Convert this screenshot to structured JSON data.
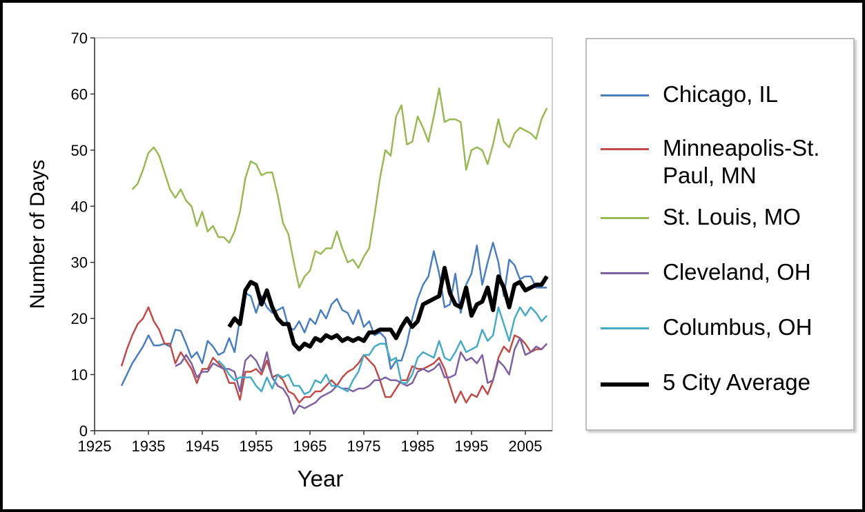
{
  "chart_data": {
    "type": "line",
    "x_label": "Year",
    "y_label": "Number of Days",
    "x": [
      1930,
      1931,
      1932,
      1933,
      1934,
      1935,
      1936,
      1937,
      1938,
      1939,
      1940,
      1941,
      1942,
      1943,
      1944,
      1945,
      1946,
      1947,
      1948,
      1949,
      1950,
      1951,
      1952,
      1953,
      1954,
      1955,
      1956,
      1957,
      1958,
      1959,
      1960,
      1961,
      1962,
      1963,
      1964,
      1965,
      1966,
      1967,
      1968,
      1969,
      1970,
      1971,
      1972,
      1973,
      1974,
      1975,
      1976,
      1977,
      1978,
      1979,
      1980,
      1981,
      1982,
      1983,
      1984,
      1985,
      1986,
      1987,
      1988,
      1989,
      1990,
      1991,
      1992,
      1993,
      1994,
      1995,
      1996,
      1997,
      1998,
      1999,
      2000,
      2001,
      2002,
      2003,
      2004,
      2005,
      2006,
      2007,
      2008,
      2009
    ],
    "series": [
      {
        "name": "Chicago, IL",
        "color": "#4a7ebb",
        "width": 2.5,
        "values": [
          8,
          10,
          12,
          13.5,
          15,
          17,
          15.2,
          15.2,
          15.5,
          15,
          18,
          17.8,
          15.5,
          13,
          14,
          12,
          16,
          15,
          13.5,
          14,
          16.5,
          14,
          20,
          24.5,
          24,
          21,
          24,
          22,
          21,
          21.5,
          22,
          18.5,
          18,
          19.5,
          17.5,
          20,
          19,
          21.5,
          20,
          22.5,
          23.5,
          21.5,
          21,
          19,
          21.5,
          18.5,
          19.5,
          17,
          17.5,
          16.5,
          11,
          12.5,
          12.5,
          15.5,
          20,
          23.5,
          26,
          27.5,
          32,
          28,
          22,
          22.5,
          28,
          21,
          26,
          28,
          33,
          26,
          30,
          33.5,
          30,
          24,
          30.5,
          29.5,
          27,
          27.5,
          27.5,
          25.5,
          25.5,
          25.5
        ]
      },
      {
        "name": "Minneapolis-St. Paul, MN",
        "color": "#be4b48",
        "width": 2.5,
        "values": [
          11.5,
          14.5,
          17,
          19,
          20,
          22,
          19.5,
          18,
          15.5,
          15.5,
          12,
          14,
          12.5,
          11,
          8.5,
          11,
          11,
          13,
          12,
          11,
          8.5,
          8.5,
          5.5,
          10.5,
          10.5,
          11,
          10,
          12.5,
          9.5,
          10,
          9,
          7,
          6.5,
          5,
          6,
          6,
          7,
          7,
          8,
          9,
          8,
          9.5,
          10.5,
          11,
          12,
          13.5,
          12.5,
          11.5,
          9,
          6,
          6,
          7.5,
          9,
          9,
          11.5,
          11,
          11,
          11.5,
          12,
          13,
          11,
          8,
          5,
          7,
          5,
          6.5,
          6,
          8,
          6.5,
          9,
          13,
          15,
          14,
          17,
          16.5,
          15.5,
          14,
          14.5,
          14.5,
          15.5
        ]
      },
      {
        "name": "St. Louis, MO",
        "color": "#98b954",
        "width": 2.5,
        "values": [
          null,
          null,
          43,
          44,
          46.5,
          49.5,
          50.5,
          49,
          46,
          43,
          41.5,
          43,
          41,
          40,
          36.5,
          39,
          35.5,
          36.5,
          34.5,
          34.5,
          33.5,
          35.5,
          39,
          45,
          48,
          47.5,
          45.5,
          46,
          46,
          42,
          37,
          35,
          30,
          25.5,
          27.5,
          28.5,
          32,
          31.5,
          32.5,
          32.5,
          35.5,
          32.5,
          30,
          30.5,
          29,
          31,
          32.5,
          38.5,
          45,
          50,
          49,
          56,
          58,
          51,
          51.5,
          56,
          54,
          51.5,
          56,
          61,
          55,
          55.5,
          55.5,
          55,
          46.5,
          50,
          50.5,
          50,
          47.5,
          51,
          55.5,
          51.5,
          50.5,
          53,
          54,
          53.5,
          53,
          52,
          55.5,
          57.5
        ]
      },
      {
        "name": "Cleveland, OH",
        "color": "#7d60a0",
        "width": 2.5,
        "values": [
          null,
          null,
          null,
          null,
          null,
          null,
          null,
          null,
          null,
          null,
          11.5,
          12,
          13.5,
          12,
          9.5,
          10.5,
          10.5,
          12,
          11.5,
          11,
          11,
          10.5,
          7,
          12.5,
          13.5,
          12.5,
          10.5,
          14,
          9.5,
          8,
          7.5,
          6,
          3,
          4.5,
          4,
          4.5,
          5,
          6,
          6.5,
          7,
          8,
          7.5,
          7.5,
          7,
          7.5,
          7.5,
          8,
          9,
          9,
          9.5,
          9,
          9,
          8.5,
          8,
          8.5,
          10.5,
          11,
          10.5,
          11,
          12,
          9.5,
          9.5,
          10,
          14,
          12.5,
          13,
          12,
          13.5,
          8.5,
          9,
          12.5,
          11.5,
          10,
          14.5,
          16.5,
          13.5,
          14,
          15,
          14.5,
          15.5
        ]
      },
      {
        "name": "Columbus, OH",
        "color": "#46aac5",
        "width": 2.5,
        "values": [
          null,
          null,
          null,
          null,
          null,
          null,
          null,
          null,
          null,
          null,
          null,
          null,
          null,
          null,
          null,
          null,
          null,
          null,
          12.5,
          11.5,
          10,
          9,
          9.5,
          9.5,
          9.5,
          8,
          7,
          9.5,
          7.5,
          10,
          9.5,
          10,
          8,
          8,
          6.5,
          7,
          9,
          8.5,
          10,
          8,
          8,
          7.5,
          7,
          9,
          10.5,
          13.5,
          13.5,
          15,
          15.5,
          15.5,
          12.5,
          13,
          8.5,
          8.5,
          10,
          13,
          14,
          13.5,
          13,
          16,
          13,
          12.5,
          14,
          16,
          14,
          14.5,
          15,
          18,
          16,
          17,
          22,
          19,
          16,
          20,
          22,
          20.5,
          22,
          21,
          19.5,
          20.5
        ]
      },
      {
        "name": "5 City Average",
        "color": "#000000",
        "width": 6,
        "values": [
          null,
          null,
          null,
          null,
          null,
          null,
          null,
          null,
          null,
          null,
          null,
          null,
          null,
          null,
          null,
          null,
          null,
          null,
          null,
          null,
          18.5,
          20,
          19,
          25,
          26.5,
          26,
          22.5,
          25,
          22,
          20,
          19,
          19,
          15.5,
          14.5,
          15.5,
          15,
          16.5,
          16,
          17,
          16.5,
          17,
          16,
          16.5,
          16,
          16.5,
          16,
          17.5,
          17.5,
          18,
          18,
          18,
          16.5,
          18.5,
          20,
          18.5,
          19.5,
          22.5,
          23,
          23.5,
          24,
          29,
          24.5,
          22.5,
          22,
          25.5,
          20.5,
          22.5,
          23,
          25.5,
          21.5,
          27.5,
          25.5,
          22,
          26,
          26.5,
          25,
          25.5,
          26,
          26,
          27.5
        ]
      }
    ],
    "xlim": [
      1925,
      2010
    ],
    "xticks": [
      1925,
      1935,
      1945,
      1955,
      1965,
      1975,
      1985,
      1995,
      2005
    ],
    "ylim": [
      0,
      70
    ],
    "yticks": [
      0,
      10,
      20,
      30,
      40,
      50,
      60,
      70
    ],
    "grid": false,
    "legend": "right"
  }
}
